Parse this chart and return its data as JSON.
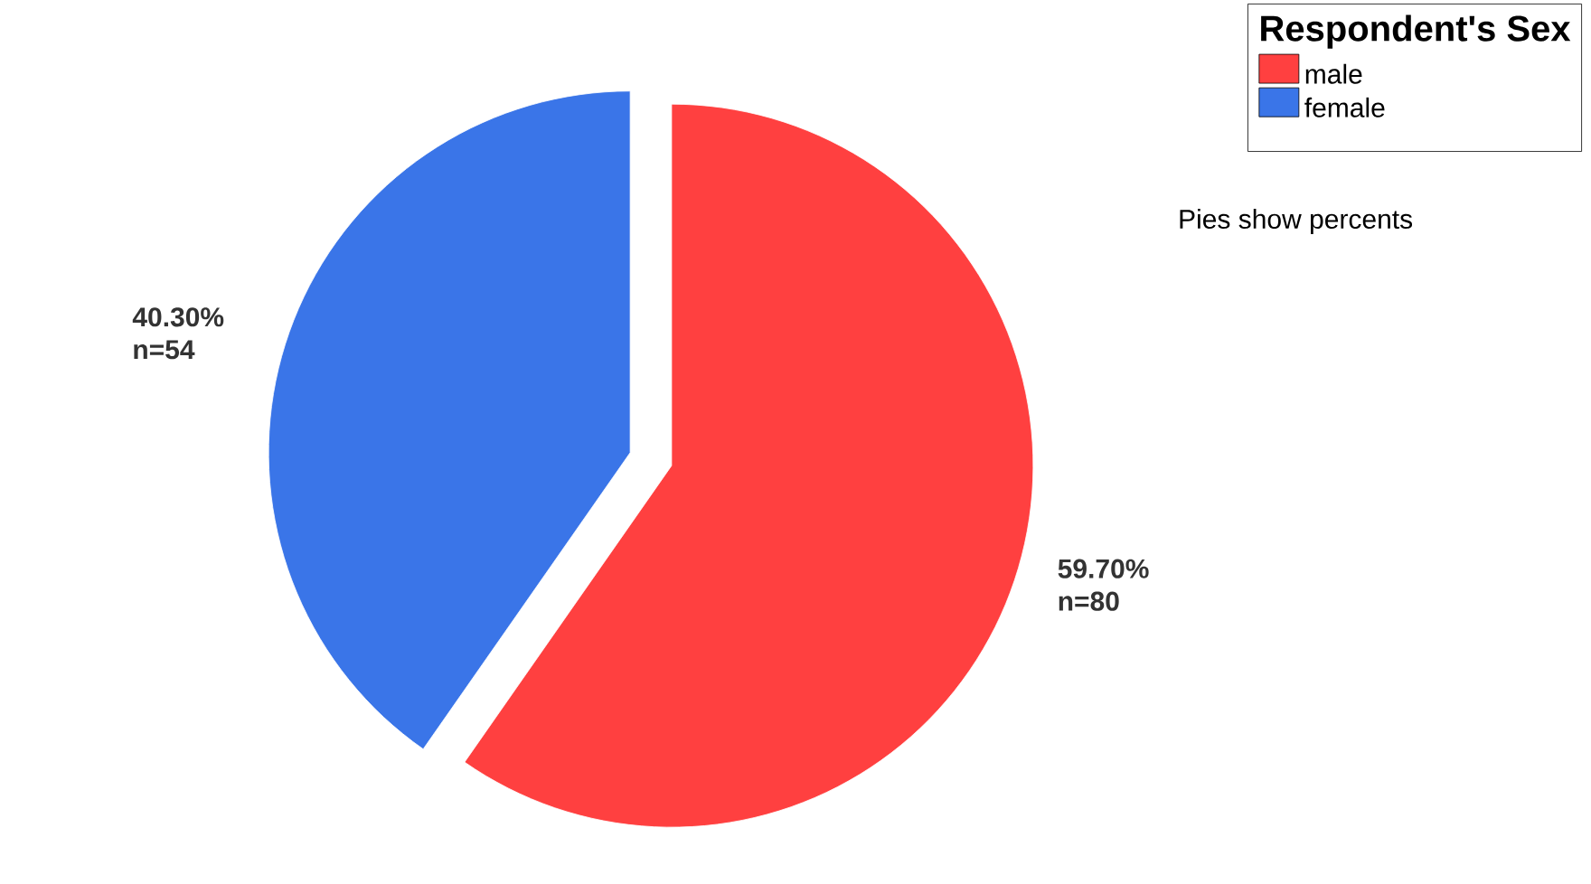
{
  "chart_data": {
    "type": "pie",
    "legend_title": "Respondent's Sex",
    "categories": [
      "male",
      "female"
    ],
    "values": [
      59.7,
      40.3
    ],
    "colors": [
      "#ff4040",
      "#3a75e8"
    ],
    "value_labels": [
      "59.70% n=80",
      "40.30% n=54"
    ],
    "legend": "top right",
    "annotations": [
      "Pies show percents"
    ]
  }
}
